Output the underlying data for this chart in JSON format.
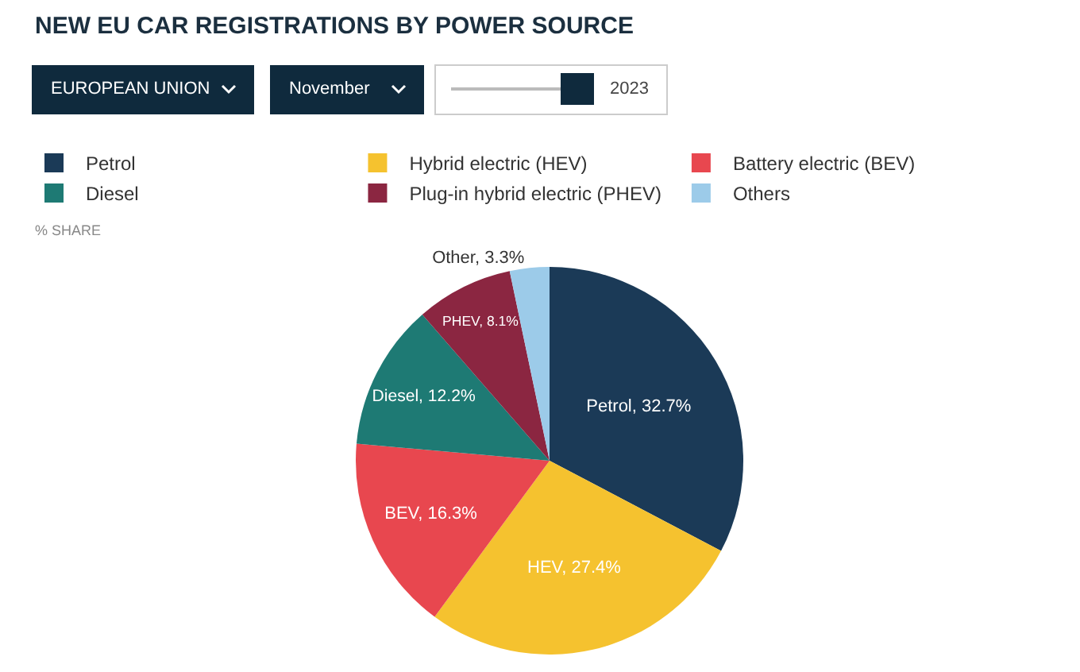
{
  "chart_data": {
    "type": "pie",
    "title": "NEW EU CAR REGISTRATIONS BY POWER SOURCE",
    "categories": [
      "Petrol",
      "Hybrid electric (HEV)",
      "Battery electric (BEV)",
      "Diesel",
      "Plug-in hybrid electric (PHEV)",
      "Others"
    ],
    "values": [
      32.7,
      27.4,
      16.3,
      12.2,
      8.1,
      3.3
    ],
    "colors": [
      "#1b3a57",
      "#f5c22f",
      "#e8474f",
      "#1e7a74",
      "#8b2641",
      "#9ccbe9"
    ],
    "value_labels": [
      "Petrol, 32.7%",
      "HEV, 27.4%",
      "BEV, 16.3%",
      "Diesel, 12.2%",
      "PHEV, 8.1%",
      "Other, 3.3%"
    ],
    "annotations": [
      "EUROPEAN UNION",
      "November",
      "2023",
      "% SHARE"
    ],
    "legend": "top left"
  }
}
